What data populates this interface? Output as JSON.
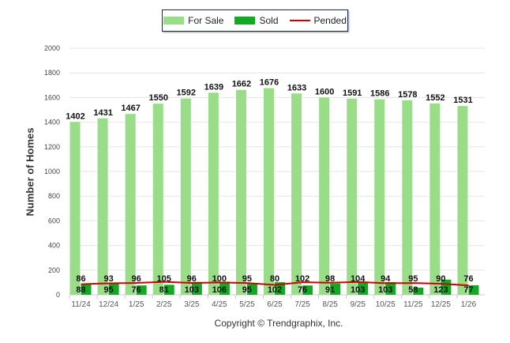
{
  "chart_data": {
    "type": "bar",
    "title": "",
    "xlabel": "",
    "ylabel": "Number of Homes",
    "ylim": [
      0,
      2000
    ],
    "yticks": [
      0,
      200,
      400,
      600,
      800,
      1000,
      1200,
      1400,
      1600,
      1800,
      2000
    ],
    "grid": true,
    "legend_position": "top-center",
    "categories": [
      "11/24",
      "12/24",
      "1/25",
      "2/25",
      "3/25",
      "4/25",
      "5/25",
      "6/25",
      "7/25",
      "8/25",
      "9/25",
      "10/25",
      "11/25",
      "12/25",
      "1/26"
    ],
    "series": [
      {
        "name": "For Sale",
        "type": "bar",
        "color": "#99dd88",
        "values": [
          1402,
          1431,
          1467,
          1550,
          1592,
          1639,
          1662,
          1676,
          1633,
          1600,
          1591,
          1586,
          1578,
          1552,
          1531
        ]
      },
      {
        "name": "Sold",
        "type": "bar",
        "color": "#11aa22",
        "values": [
          88,
          95,
          76,
          81,
          103,
          106,
          95,
          102,
          76,
          91,
          103,
          103,
          58,
          123,
          77
        ]
      },
      {
        "name": "Pended",
        "type": "line",
        "color": "#cc0000",
        "values": [
          86,
          93,
          96,
          105,
          96,
          100,
          95,
          80,
          102,
          98,
          104,
          94,
          95,
          90,
          76
        ]
      }
    ]
  },
  "footer": {
    "copyright": "Copyright © Trendgraphix, Inc."
  }
}
